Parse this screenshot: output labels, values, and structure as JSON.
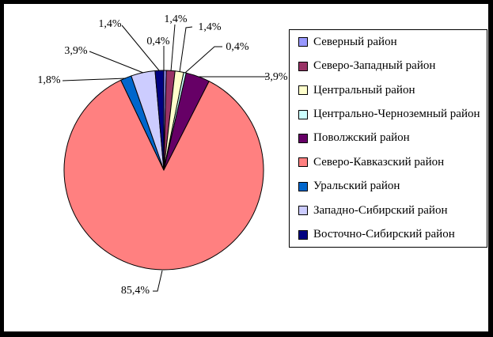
{
  "frame": {
    "background": "#FFFFFF",
    "border_color": "#000000"
  },
  "chart_data": {
    "type": "pie",
    "title": "",
    "legend_position": "right",
    "direction": "clockwise",
    "start_angle_deg": 0,
    "decimal_separator": ",",
    "total_pct": 100.0,
    "slices": [
      {
        "name": "Северный район",
        "value_pct": 0.4,
        "percent_label": "0,4%",
        "color": "#9999FF"
      },
      {
        "name": "Северо-Западный район",
        "value_pct": 1.4,
        "percent_label": "1,4%",
        "color": "#993366"
      },
      {
        "name": "Центральный район",
        "value_pct": 1.4,
        "percent_label": "1,4%",
        "color": "#FFFFCC"
      },
      {
        "name": "Центрально-Черноземный район",
        "value_pct": 0.4,
        "percent_label": "0,4%",
        "color": "#CCFFFF"
      },
      {
        "name": "Поволжский район",
        "value_pct": 3.9,
        "percent_label": "3,9%",
        "color": "#660066"
      },
      {
        "name": "Северо-Кавказский район",
        "value_pct": 85.4,
        "percent_label": "85,4%",
        "color": "#FF8080"
      },
      {
        "name": "Уральский район",
        "value_pct": 1.8,
        "percent_label": "1,8%",
        "color": "#0066CC"
      },
      {
        "name": "Западно-Сибирский район",
        "value_pct": 3.9,
        "percent_label": "3,9%",
        "color": "#CCCCFF"
      },
      {
        "name": "Восточно-Сибирский район",
        "value_pct": 1.4,
        "percent_label": "1,4%",
        "color": "#000080"
      }
    ]
  }
}
